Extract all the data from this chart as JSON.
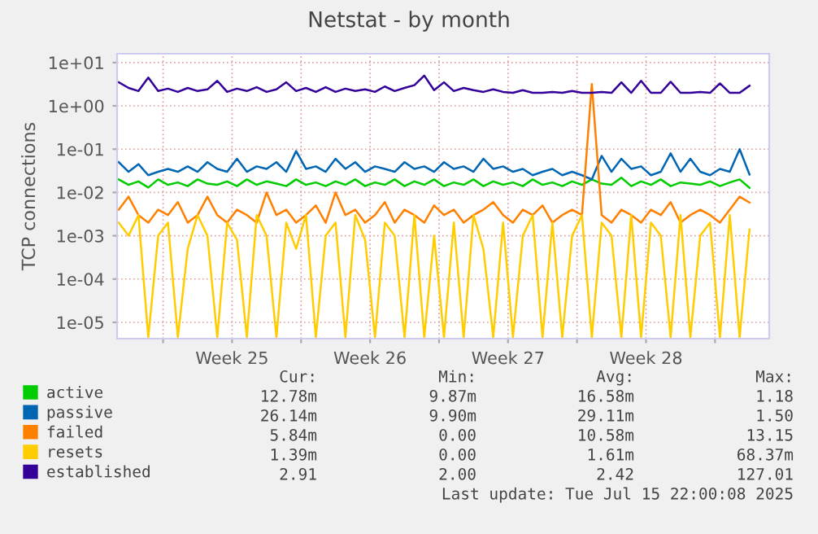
{
  "chart_data": {
    "type": "line",
    "title": "Netstat - by month",
    "ylabel": "TCP connections",
    "x": [
      "2025-06-13T18:00",
      "2025-06-14T06:00",
      "2025-06-14T18:00",
      "2025-06-15T06:00",
      "2025-06-15T18:00",
      "2025-06-16T06:00",
      "2025-06-16T18:00",
      "2025-06-17T06:00",
      "2025-06-17T18:00",
      "2025-06-18T06:00",
      "2025-06-18T18:00",
      "2025-06-19T06:00",
      "2025-06-19T18:00",
      "2025-06-20T06:00",
      "2025-06-20T18:00",
      "2025-06-21T06:00",
      "2025-06-21T18:00",
      "2025-06-22T06:00",
      "2025-06-22T18:00",
      "2025-06-23T06:00",
      "2025-06-23T18:00",
      "2025-06-24T06:00",
      "2025-06-24T18:00",
      "2025-06-25T06:00",
      "2025-06-25T18:00",
      "2025-06-26T06:00",
      "2025-06-26T18:00",
      "2025-06-27T06:00",
      "2025-06-27T18:00",
      "2025-06-28T06:00",
      "2025-06-28T18:00",
      "2025-06-29T06:00",
      "2025-06-29T18:00",
      "2025-06-30T06:00",
      "2025-06-30T18:00",
      "2025-07-01T06:00",
      "2025-07-01T18:00",
      "2025-07-02T06:00",
      "2025-07-02T18:00",
      "2025-07-03T06:00",
      "2025-07-03T18:00",
      "2025-07-04T06:00",
      "2025-07-04T18:00",
      "2025-07-05T06:00",
      "2025-07-05T18:00",
      "2025-07-06T06:00",
      "2025-07-06T18:00",
      "2025-07-07T06:00",
      "2025-07-07T18:00",
      "2025-07-08T06:00",
      "2025-07-08T18:00",
      "2025-07-09T06:00",
      "2025-07-09T18:00",
      "2025-07-10T06:00",
      "2025-07-10T18:00",
      "2025-07-11T06:00",
      "2025-07-11T18:00",
      "2025-07-12T06:00",
      "2025-07-12T18:00",
      "2025-07-13T06:00",
      "2025-07-13T18:00",
      "2025-07-14T06:00",
      "2025-07-14T18:00",
      "2025-07-15T06:00",
      "2025-07-15T18:00"
    ],
    "series": [
      {
        "name": "active",
        "color": "#00cc00",
        "values": [
          0.02,
          0.015,
          0.018,
          0.013,
          0.02,
          0.015,
          0.017,
          0.014,
          0.02,
          0.016,
          0.015,
          0.018,
          0.014,
          0.02,
          0.015,
          0.018,
          0.016,
          0.014,
          0.02,
          0.015,
          0.017,
          0.014,
          0.018,
          0.015,
          0.02,
          0.014,
          0.017,
          0.015,
          0.02,
          0.014,
          0.018,
          0.015,
          0.02,
          0.014,
          0.017,
          0.015,
          0.02,
          0.014,
          0.018,
          0.015,
          0.017,
          0.014,
          0.02,
          0.015,
          0.017,
          0.014,
          0.018,
          0.015,
          0.02,
          0.016,
          0.015,
          0.022,
          0.014,
          0.018,
          0.015,
          0.02,
          0.014,
          0.017,
          0.016,
          0.015,
          0.018,
          0.014,
          0.017,
          0.02,
          0.0128
        ]
      },
      {
        "name": "passive",
        "color": "#0066b3",
        "values": [
          0.05,
          0.03,
          0.045,
          0.025,
          0.03,
          0.035,
          0.03,
          0.04,
          0.03,
          0.05,
          0.035,
          0.03,
          0.06,
          0.03,
          0.04,
          0.035,
          0.05,
          0.03,
          0.09,
          0.035,
          0.04,
          0.03,
          0.06,
          0.035,
          0.05,
          0.03,
          0.04,
          0.035,
          0.03,
          0.05,
          0.035,
          0.04,
          0.03,
          0.05,
          0.035,
          0.04,
          0.03,
          0.06,
          0.035,
          0.04,
          0.03,
          0.035,
          0.025,
          0.03,
          0.035,
          0.025,
          0.03,
          0.025,
          0.02,
          0.07,
          0.03,
          0.06,
          0.035,
          0.04,
          0.025,
          0.03,
          0.08,
          0.03,
          0.06,
          0.03,
          0.025,
          0.035,
          0.03,
          0.1,
          0.026
        ]
      },
      {
        "name": "failed",
        "color": "#ff8000",
        "values": [
          0.004,
          0.008,
          0.003,
          0.002,
          0.004,
          0.003,
          0.006,
          0.002,
          0.003,
          0.008,
          0.003,
          0.002,
          0.004,
          0.003,
          0.002,
          0.01,
          0.003,
          0.004,
          0.002,
          0.003,
          0.005,
          0.002,
          0.01,
          0.003,
          0.004,
          0.002,
          0.003,
          0.006,
          0.002,
          0.004,
          0.003,
          0.002,
          0.005,
          0.003,
          0.004,
          0.002,
          0.003,
          0.004,
          0.006,
          0.003,
          0.002,
          0.004,
          0.003,
          0.005,
          0.002,
          0.003,
          0.004,
          0.003,
          3.2,
          0.003,
          0.002,
          0.004,
          0.003,
          0.002,
          0.004,
          0.003,
          0.006,
          0.002,
          0.003,
          0.004,
          0.003,
          0.002,
          0.004,
          0.008,
          0.00584
        ]
      },
      {
        "name": "resets",
        "color": "#ffcc00",
        "values": [
          0.002,
          0.001,
          0.003,
          4.5e-06,
          0.001,
          0.002,
          4.5e-06,
          0.0005,
          0.003,
          0.001,
          4.5e-06,
          0.002,
          0.0008,
          4.5e-06,
          0.003,
          0.001,
          4.5e-06,
          0.002,
          0.0005,
          0.003,
          4.5e-06,
          0.001,
          0.002,
          4.5e-06,
          0.003,
          0.0008,
          4.5e-06,
          0.002,
          0.001,
          4.5e-06,
          0.003,
          4.5e-06,
          0.001,
          4.5e-06,
          0.002,
          4.5e-06,
          0.003,
          0.0005,
          4.5e-06,
          0.002,
          4.5e-06,
          0.001,
          0.003,
          4.5e-06,
          0.002,
          4.5e-06,
          0.001,
          0.003,
          4.5e-06,
          0.002,
          0.001,
          4.5e-06,
          0.003,
          4.5e-06,
          0.002,
          0.001,
          4.5e-06,
          0.003,
          4.5e-06,
          0.001,
          0.002,
          4.5e-06,
          0.003,
          4.5e-06,
          0.00139
        ]
      },
      {
        "name": "established",
        "color": "#330099",
        "values": [
          3.5,
          2.6,
          2.2,
          4.5,
          2.2,
          2.5,
          2.1,
          2.6,
          2.2,
          2.4,
          3.8,
          2.1,
          2.5,
          2.2,
          2.7,
          2.1,
          2.4,
          3.5,
          2.2,
          2.6,
          2.1,
          2.7,
          2.1,
          2.5,
          2.2,
          2.4,
          2.1,
          2.8,
          2.2,
          2.6,
          3.0,
          5.0,
          2.3,
          3.5,
          2.2,
          2.6,
          2.3,
          2.1,
          2.4,
          2.1,
          2.0,
          2.3,
          2.0,
          2.0,
          2.1,
          2.0,
          2.2,
          2.0,
          2.0,
          2.1,
          2.0,
          3.5,
          2.0,
          3.8,
          2.0,
          2.0,
          3.6,
          2.0,
          2.0,
          2.1,
          2.0,
          3.3,
          2.0,
          2.0,
          2.91
        ]
      }
    ],
    "log": "y",
    "ylim": [
      4.2e-06,
      16
    ],
    "yticks": [
      {
        "value": 1e-05,
        "label": "1e-05"
      },
      {
        "value": 0.0001,
        "label": "1e-04"
      },
      {
        "value": 0.001,
        "label": "1e-03"
      },
      {
        "value": 0.01,
        "label": "1e-02"
      },
      {
        "value": 0.1,
        "label": "1e-01"
      },
      {
        "value": 1,
        "label": "1e+00"
      },
      {
        "value": 10,
        "label": "1e+01"
      }
    ],
    "xlim": [
      "2025-06-13T16:00",
      "2025-07-16T18:00"
    ],
    "xticks": [
      {
        "value": "2025-06-16",
        "label": null
      },
      {
        "value": "2025-06-19T12:00",
        "label": "Week 25"
      },
      {
        "value": "2025-06-23",
        "label": null
      },
      {
        "value": "2025-06-26T12:00",
        "label": "Week 26"
      },
      {
        "value": "2025-06-30",
        "label": null
      },
      {
        "value": "2025-07-03T12:00",
        "label": "Week 27"
      },
      {
        "value": "2025-07-07",
        "label": null
      },
      {
        "value": "2025-07-10T12:00",
        "label": "Week 28"
      },
      {
        "value": "2025-07-14",
        "label": null
      }
    ],
    "grid": true,
    "legend": "bottom left",
    "marker": "none",
    "line_style": "solid",
    "annotations": [
      "Cur:",
      "Min:",
      "Avg:",
      "Max:",
      "12.78m",
      "9.87m",
      "16.58m",
      "1.18",
      "26.14m",
      "9.90m",
      "29.11m",
      "1.50",
      "5.84m",
      "0.00",
      "10.58m",
      "13.15",
      "1.39m",
      "0.00",
      "1.61m",
      "68.37m",
      "2.91",
      "2.00",
      "2.42",
      "127.01",
      "Last update: Tue Jul 15 22:00:08 2025"
    ]
  }
}
